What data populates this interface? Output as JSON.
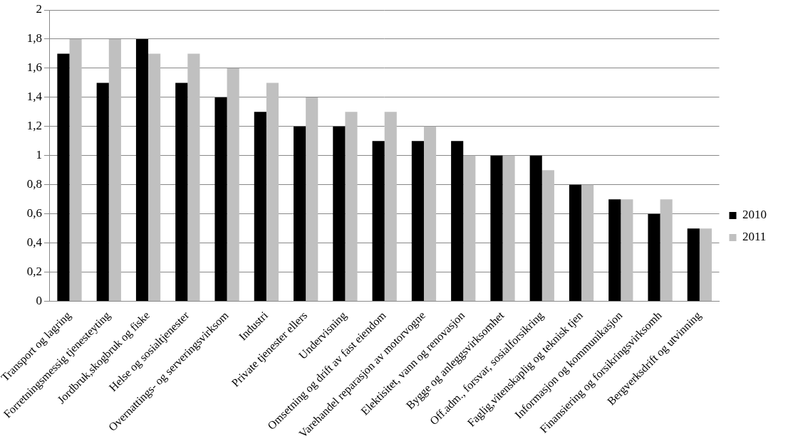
{
  "chart_data": {
    "type": "bar",
    "categories": [
      "Transport og lagring",
      "Forretningsmessig tjenesteyting",
      "Jordbruk,skogbruk og fiske",
      "Helse og sosialtjenester",
      "Overnattings- og serveringsvirksom",
      "Industri",
      "Private tjenester ellers",
      "Undervisning",
      "Omsetning og drift av fast eiendom",
      "Varehandel reparasjon av motorvogne",
      "Elektisitet, vann og renovasjon",
      "Bygge og anleggsvirksomhet",
      "Off.adm., forsvar, sosialforsikring",
      "Faglig,vitenskaplig og teknisk tjen",
      "Informasjon og kommunikasjon",
      "Finansiering og forsikringsvirksomh",
      "Bergverksdrift og utvinning"
    ],
    "series": [
      {
        "name": "2010",
        "color": "#000000",
        "values": [
          1.7,
          1.5,
          1.8,
          1.5,
          1.4,
          1.3,
          1.2,
          1.2,
          1.1,
          1.1,
          1.1,
          1.0,
          1.0,
          0.8,
          0.7,
          0.6,
          0.5
        ]
      },
      {
        "name": "2011",
        "color": "#c0c0c0",
        "values": [
          1.8,
          1.8,
          1.7,
          1.7,
          1.6,
          1.5,
          1.4,
          1.3,
          1.3,
          1.2,
          1.0,
          1.0,
          0.9,
          0.8,
          0.7,
          0.7,
          0.5
        ]
      }
    ],
    "ylim": [
      0,
      2
    ],
    "yticks": [
      0,
      {
        "value": 0.2,
        "label": "0,2"
      },
      {
        "value": 0.4,
        "label": "0,4"
      },
      {
        "value": 0.6,
        "label": "0,6"
      },
      {
        "value": 0.8,
        "label": "0,8"
      },
      1,
      {
        "value": 1.2,
        "label": "1,2"
      },
      {
        "value": 1.4,
        "label": "1,4"
      },
      {
        "value": 1.6,
        "label": "1,6"
      },
      {
        "value": 1.8,
        "label": "1,8"
      },
      2
    ],
    "grid": true,
    "legend": "right"
  }
}
